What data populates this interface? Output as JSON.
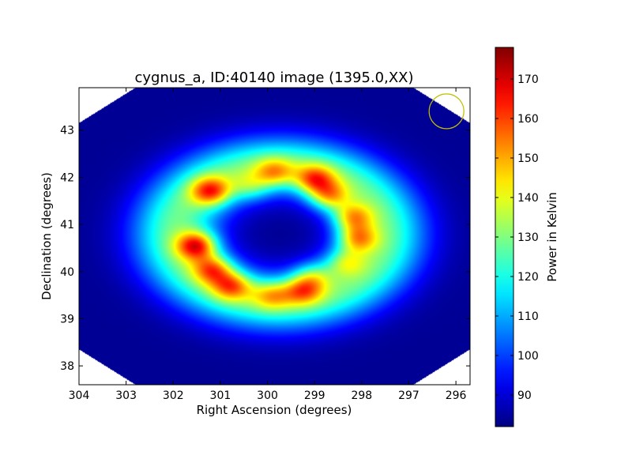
{
  "chart_data": {
    "type": "heatmap",
    "title": "cygnus_a, ID:40140 image (1395.0,XX)",
    "xlabel": "Right Ascension (degrees)",
    "ylabel": "Declination (degrees)",
    "colorbar_label": "Power in Kelvin",
    "xlim": [
      304,
      295.7
    ],
    "ylim": [
      37.6,
      43.9
    ],
    "x_ticks": [
      304,
      303,
      302,
      301,
      300,
      299,
      298,
      297,
      296
    ],
    "y_ticks": [
      38,
      39,
      40,
      41,
      42,
      43
    ],
    "colorbar_range": [
      82,
      178
    ],
    "colorbar_ticks": [
      90,
      100,
      110,
      120,
      130,
      140,
      150,
      160,
      170
    ],
    "colormap": "jet",
    "background_value": 84,
    "field_of_view": {
      "shape": "clipped-octagon",
      "ra_range": [
        304.0,
        295.7
      ],
      "dec_range": [
        37.6,
        43.9
      ],
      "corner_cut_ra": 1.2,
      "corner_cut_dec": 0.75
    },
    "ring": {
      "center_ra": 299.75,
      "center_dec": 40.8,
      "radius_ra": 2.2,
      "radius_dec": 1.45,
      "width_ra": 0.95,
      "width_dec": 0.62,
      "peak_value": 128
    },
    "hot_spots": [
      {
        "ra": 301.5,
        "dec": 40.55,
        "value": 176
      },
      {
        "ra": 301.15,
        "dec": 40.05,
        "value": 165
      },
      {
        "ra": 300.75,
        "dec": 39.7,
        "value": 162
      },
      {
        "ra": 299.9,
        "dec": 39.5,
        "value": 152
      },
      {
        "ra": 299.25,
        "dec": 39.6,
        "value": 160
      },
      {
        "ra": 299.05,
        "dec": 39.9,
        "value": 150
      },
      {
        "ra": 298.35,
        "dec": 40.2,
        "value": 150
      },
      {
        "ra": 298.1,
        "dec": 40.7,
        "value": 163
      },
      {
        "ra": 298.2,
        "dec": 41.15,
        "value": 162
      },
      {
        "ra": 298.7,
        "dec": 41.6,
        "value": 162
      },
      {
        "ra": 299.0,
        "dec": 41.95,
        "value": 165
      },
      {
        "ra": 299.85,
        "dec": 42.1,
        "value": 155
      },
      {
        "ra": 301.2,
        "dec": 41.7,
        "value": 168
      },
      {
        "ra": 300.35,
        "dec": 41.8,
        "value": 145
      }
    ],
    "beam_marker": {
      "ra": 296.2,
      "dec": 43.4,
      "shape": "circle",
      "color": "#bfbf00"
    }
  }
}
